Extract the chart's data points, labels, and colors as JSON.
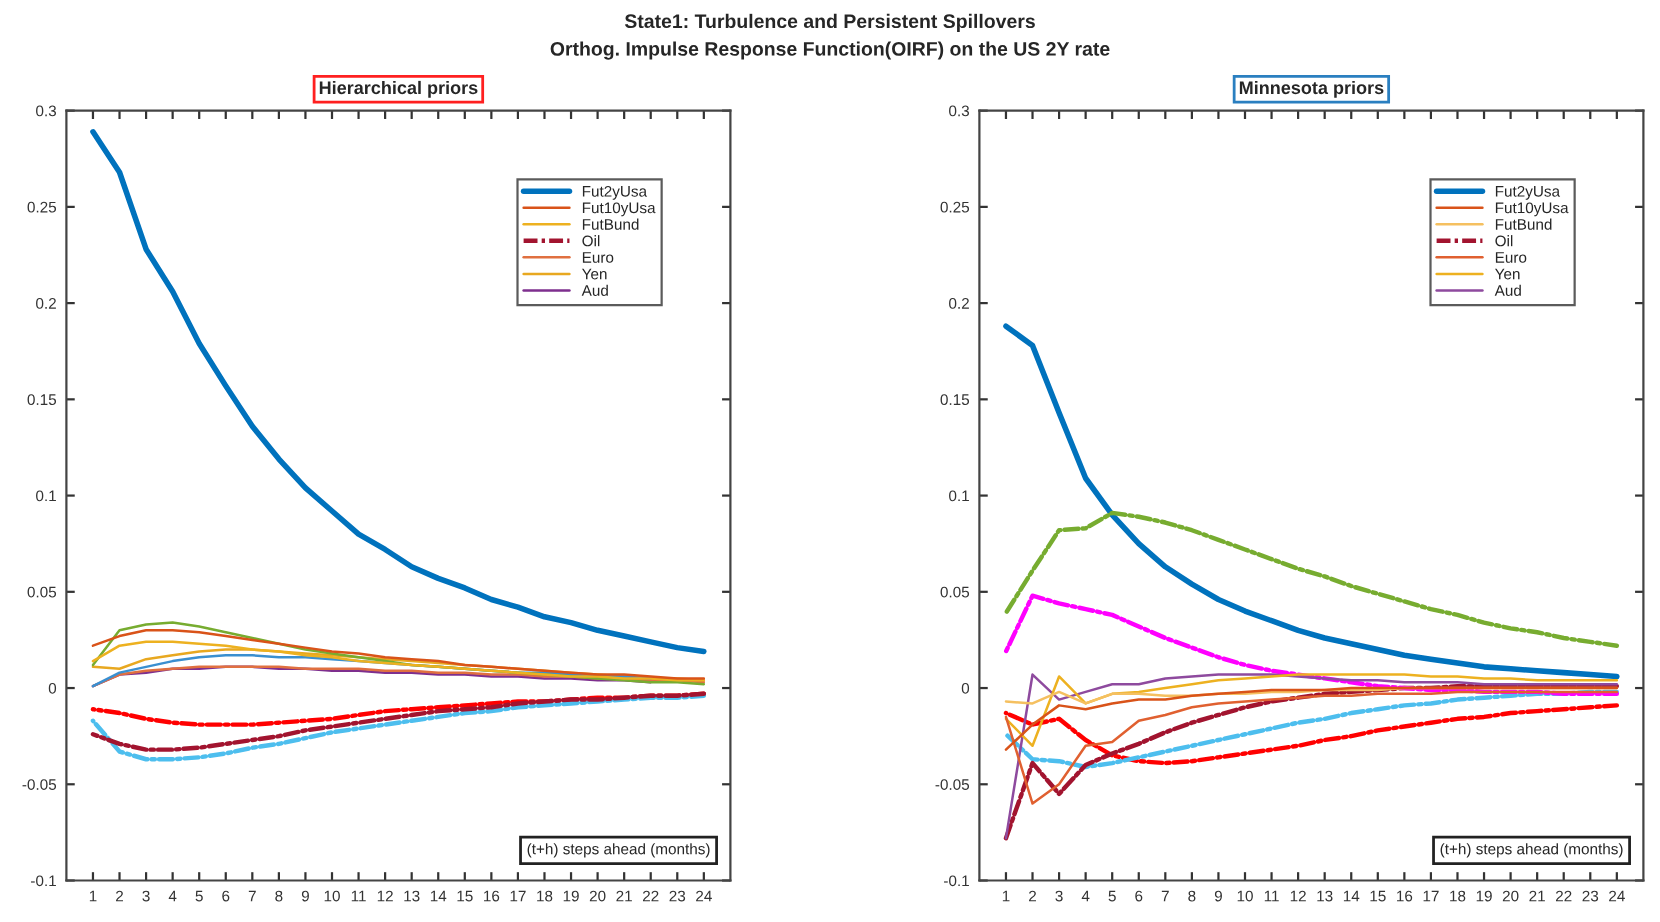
{
  "chart_data": [
    {
      "type": "other",
      "title": "State1: Turbulence and Persistent Spillovers",
      "subtitle": "Orthog. Impulse Response Function(OIRF) on the US 2Y rate"
    },
    {
      "type": "line",
      "title": "Hierarchical priors",
      "x": [
        1,
        2,
        3,
        4,
        5,
        6,
        7,
        8,
        9,
        10,
        11,
        12,
        13,
        14,
        15,
        16,
        17,
        18,
        19,
        20,
        21,
        22,
        23,
        24
      ],
      "xlim": [
        0,
        25
      ],
      "xticks": [
        1,
        2,
        3,
        4,
        5,
        6,
        7,
        8,
        9,
        10,
        11,
        12,
        13,
        14,
        15,
        16,
        17,
        18,
        19,
        20,
        21,
        22,
        23,
        24
      ],
      "ylim": [
        -0.1,
        0.3
      ],
      "yticks": [
        -0.1,
        -0.05,
        0,
        0.05,
        0.1,
        0.15,
        0.2,
        0.25,
        0.3
      ],
      "grid": false,
      "legend": "top right",
      "annotations": [
        "(t+h) steps ahead (months)"
      ],
      "series": [
        {
          "name": "Fut2yUsa",
          "color": "#0072bd",
          "values": [
            0.289,
            0.268,
            0.228,
            0.206,
            0.179,
            0.157,
            0.136,
            0.119,
            0.104,
            0.092,
            0.08,
            0.072,
            0.063,
            0.057,
            0.052,
            0.046,
            0.042,
            0.037,
            0.034,
            0.03,
            0.027,
            0.024,
            0.021,
            0.019
          ]
        },
        {
          "name": "Fut10yUsa",
          "color": "#d95319",
          "values": [
            0.022,
            0.027,
            0.03,
            0.03,
            0.029,
            0.027,
            0.025,
            0.023,
            0.021,
            0.019,
            0.018,
            0.016,
            0.015,
            0.014,
            0.012,
            0.011,
            0.01,
            0.009,
            0.008,
            0.007,
            0.007,
            0.006,
            0.005,
            0.005
          ]
        },
        {
          "name": "FutBund",
          "color": "#edb120",
          "values": [
            0.014,
            0.022,
            0.024,
            0.024,
            0.023,
            0.022,
            0.02,
            0.019,
            0.017,
            0.016,
            0.014,
            0.013,
            0.012,
            0.011,
            0.01,
            0.009,
            0.008,
            0.007,
            0.006,
            0.006,
            0.005,
            0.005,
            0.004,
            0.004
          ]
        },
        {
          "color": "#ff0000",
          "line_style": "dashed",
          "values": [
            -0.011,
            -0.013,
            -0.016,
            -0.018,
            -0.019,
            -0.019,
            -0.019,
            -0.018,
            -0.017,
            -0.016,
            -0.014,
            -0.012,
            -0.011,
            -0.01,
            -0.009,
            -0.008,
            -0.007,
            -0.007,
            -0.006,
            -0.005,
            -0.005,
            -0.004,
            -0.004,
            -0.003
          ]
        },
        {
          "color": "#77ac30",
          "values": [
            0.012,
            0.03,
            0.033,
            0.034,
            0.032,
            0.029,
            0.026,
            0.023,
            0.02,
            0.018,
            0.016,
            0.014,
            0.012,
            0.011,
            0.01,
            0.009,
            0.008,
            0.007,
            0.006,
            0.005,
            0.004,
            0.003,
            0.003,
            0.002
          ]
        },
        {
          "color": "#4dbeee",
          "line_style": "dashed",
          "values": [
            -0.017,
            -0.033,
            -0.037,
            -0.037,
            -0.036,
            -0.034,
            -0.031,
            -0.029,
            -0.026,
            -0.023,
            -0.021,
            -0.019,
            -0.017,
            -0.015,
            -0.013,
            -0.012,
            -0.01,
            -0.009,
            -0.008,
            -0.007,
            -0.006,
            -0.005,
            -0.005,
            -0.004
          ]
        },
        {
          "name": "Oil",
          "color": "#a2142f",
          "line_style": "dashed",
          "values": [
            -0.024,
            -0.029,
            -0.032,
            -0.032,
            -0.031,
            -0.029,
            -0.027,
            -0.025,
            -0.022,
            -0.02,
            -0.018,
            -0.016,
            -0.014,
            -0.012,
            -0.011,
            -0.01,
            -0.008,
            -0.007,
            -0.006,
            -0.006,
            -0.005,
            -0.004,
            -0.004,
            -0.003
          ]
        },
        {
          "color": "#3a8fd0",
          "values": [
            0.001,
            0.008,
            0.011,
            0.014,
            0.016,
            0.017,
            0.017,
            0.016,
            0.016,
            0.015,
            0.014,
            0.013,
            0.012,
            0.011,
            0.01,
            0.009,
            0.008,
            0.008,
            0.007,
            0.006,
            0.006,
            0.005,
            null,
            null
          ]
        },
        {
          "name": "Euro",
          "color": "#e07040",
          "values": [
            0.001,
            0.007,
            0.009,
            0.01,
            0.011,
            0.011,
            0.011,
            0.011,
            0.01,
            0.01,
            0.01,
            0.009,
            0.009,
            0.008,
            0.008,
            0.007,
            0.007,
            0.006,
            0.006,
            0.005,
            0.005,
            0.004,
            0.004,
            0.003
          ]
        },
        {
          "name": "Yen",
          "color": "#e8a820",
          "values": [
            0.011,
            0.01,
            0.015,
            0.017,
            0.019,
            0.02,
            0.02,
            0.019,
            0.018,
            0.017,
            0.016,
            0.015,
            0.014,
            0.013,
            0.012,
            0.011,
            0.01,
            0.009,
            0.008,
            0.007,
            0.006,
            0.005,
            0.005,
            0.004
          ]
        },
        {
          "name": "Aud",
          "color": "#7e2f8e",
          "values": [
            0.001,
            0.007,
            0.008,
            0.01,
            0.01,
            0.011,
            0.011,
            0.01,
            0.01,
            0.009,
            0.009,
            0.008,
            0.008,
            0.007,
            0.007,
            0.006,
            0.006,
            0.005,
            0.005,
            0.004,
            0.004,
            0.003,
            null,
            null
          ]
        }
      ]
    },
    {
      "type": "line",
      "title": "Minnesota priors",
      "x": [
        1,
        2,
        3,
        4,
        5,
        6,
        7,
        8,
        9,
        10,
        11,
        12,
        13,
        14,
        15,
        16,
        17,
        18,
        19,
        20,
        21,
        22,
        23,
        24
      ],
      "xlim": [
        0,
        25
      ],
      "xticks": [
        1,
        2,
        3,
        4,
        5,
        6,
        7,
        8,
        9,
        10,
        11,
        12,
        13,
        14,
        15,
        16,
        17,
        18,
        19,
        20,
        21,
        22,
        23,
        24
      ],
      "ylim": [
        -0.1,
        0.3
      ],
      "yticks": [
        -0.1,
        -0.05,
        0,
        0.05,
        0.1,
        0.15,
        0.2,
        0.25,
        0.3
      ],
      "grid": false,
      "legend": "top right",
      "annotations": [
        "(t+h) steps ahead (months)"
      ],
      "series": [
        {
          "name": "Fut2yUsa",
          "color": "#0072bd",
          "values": [
            0.188,
            0.178,
            0.143,
            0.109,
            0.09,
            0.075,
            0.063,
            0.054,
            0.046,
            0.04,
            0.035,
            0.03,
            0.026,
            0.023,
            0.02,
            0.017,
            0.015,
            0.013,
            0.011,
            0.01,
            0.009,
            0.008,
            0.007,
            0.006
          ]
        },
        {
          "name": "Fut10yUsa",
          "color": "#d95319",
          "values": [
            -0.032,
            -0.019,
            -0.009,
            -0.011,
            -0.008,
            -0.006,
            -0.006,
            -0.004,
            -0.003,
            -0.002,
            -0.001,
            -0.001,
            -0.001,
            0.0,
            0.0,
            0.0,
            0.0,
            0.0,
            0.0,
            0.0,
            0.0,
            0.0,
            0.0,
            0.0
          ]
        },
        {
          "name": "FutBund",
          "color": "#f5c060",
          "values": [
            -0.007,
            -0.008,
            -0.002,
            -0.008,
            -0.003,
            -0.003,
            -0.004,
            -0.004,
            -0.003,
            -0.003,
            -0.002,
            -0.002,
            -0.001,
            -0.001,
            -0.001,
            0.0,
            0.0,
            0.0,
            0.0,
            0.0,
            0.0,
            0.0,
            0.0,
            0.0
          ]
        },
        {
          "color": "#ff0000",
          "line_style": "dashed",
          "values": [
            -0.013,
            -0.019,
            -0.016,
            -0.027,
            -0.035,
            -0.038,
            -0.039,
            -0.038,
            -0.036,
            -0.034,
            -0.032,
            -0.03,
            -0.027,
            -0.025,
            -0.022,
            -0.02,
            -0.018,
            -0.016,
            -0.015,
            -0.013,
            -0.012,
            -0.011,
            -0.01,
            -0.009
          ]
        },
        {
          "color": "#77ac30",
          "line_style": "dashed",
          "values": [
            0.039,
            0.061,
            0.082,
            0.083,
            0.091,
            0.089,
            0.086,
            0.082,
            0.077,
            0.072,
            0.067,
            0.062,
            0.058,
            0.053,
            0.049,
            0.045,
            0.041,
            0.038,
            0.034,
            0.031,
            0.029,
            0.026,
            0.024,
            0.022
          ]
        },
        {
          "color": "#4dbeee",
          "line_style": "dashed",
          "values": [
            -0.024,
            -0.037,
            -0.038,
            -0.041,
            -0.039,
            -0.036,
            -0.033,
            -0.03,
            -0.027,
            -0.024,
            -0.021,
            -0.018,
            -0.016,
            -0.013,
            -0.011,
            -0.009,
            -0.008,
            -0.006,
            -0.005,
            -0.004,
            -0.003,
            -0.003,
            -0.002,
            -0.002
          ]
        },
        {
          "name": "Oil",
          "color": "#a2142f",
          "line_style": "dashed",
          "values": [
            -0.078,
            -0.039,
            -0.055,
            -0.04,
            -0.034,
            -0.029,
            -0.023,
            -0.018,
            -0.014,
            -0.01,
            -0.007,
            -0.005,
            -0.003,
            -0.002,
            -0.001,
            0.0,
            0.0,
            0.001,
            0.001,
            0.001,
            0.001,
            0.001,
            0.001,
            0.001
          ]
        },
        {
          "color": "#ff00ff",
          "line_style": "dashed",
          "values": [
            0.019,
            0.048,
            0.044,
            0.041,
            0.038,
            0.032,
            0.026,
            0.021,
            0.016,
            0.012,
            0.009,
            0.007,
            0.005,
            0.003,
            0.001,
            0.0,
            -0.001,
            -0.001,
            -0.002,
            -0.002,
            -0.002,
            -0.003,
            -0.003,
            -0.003
          ]
        },
        {
          "name": "Euro",
          "color": "#e06030",
          "values": [
            -0.015,
            -0.06,
            -0.05,
            -0.03,
            -0.028,
            -0.017,
            -0.014,
            -0.01,
            -0.008,
            -0.007,
            -0.006,
            -0.005,
            -0.004,
            -0.004,
            -0.003,
            -0.003,
            -0.003,
            -0.002,
            -0.002,
            -0.002,
            -0.002,
            -0.002,
            -0.002,
            -0.002
          ]
        },
        {
          "name": "Yen",
          "color": "#edb120",
          "values": [
            -0.016,
            -0.03,
            0.006,
            -0.008,
            -0.003,
            -0.002,
            0.0,
            0.002,
            0.004,
            0.005,
            0.006,
            0.007,
            0.007,
            0.007,
            0.007,
            0.007,
            0.006,
            0.006,
            0.005,
            0.005,
            0.004,
            0.004,
            0.004,
            0.004
          ]
        },
        {
          "name": "Aud",
          "color": "#8e4a9e",
          "values": [
            -0.078,
            0.007,
            -0.006,
            -0.002,
            0.002,
            0.002,
            0.005,
            0.006,
            0.007,
            0.007,
            0.007,
            0.006,
            0.005,
            0.004,
            0.004,
            0.003,
            0.003,
            0.003,
            0.002,
            0.002,
            0.002,
            0.002,
            0.002,
            0.002
          ]
        }
      ]
    }
  ]
}
